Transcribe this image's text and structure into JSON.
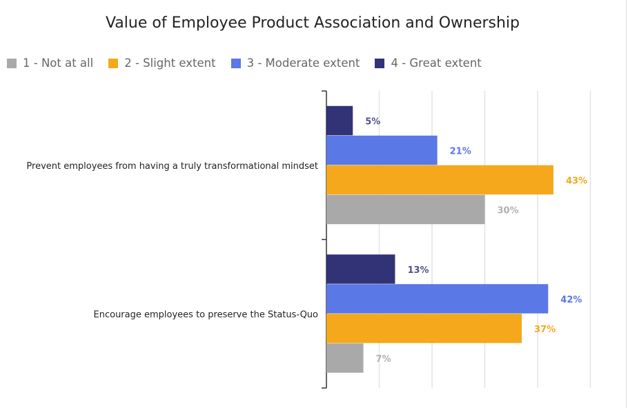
{
  "chart_data": {
    "type": "bar",
    "orientation": "horizontal",
    "title": "Value of Employee Product Association and Ownership",
    "categories": [
      "Prevent employees from having a truly transformational mindset",
      "Encourage employees to preserve the Status-Quo"
    ],
    "series": [
      {
        "name": "1 - Not at all",
        "color": "#a9a9a9",
        "values": [
          30,
          7
        ]
      },
      {
        "name": "2 - Slight extent",
        "color": "#f5a81c",
        "values": [
          43,
          37
        ]
      },
      {
        "name": "3 - Moderate extent",
        "color": "#5a78e6",
        "values": [
          21,
          42
        ]
      },
      {
        "name": "4 - Great extent",
        "color": "#323376",
        "values": [
          5,
          13
        ]
      }
    ],
    "value_format": "percent",
    "xlim": [
      0,
      50
    ],
    "grid": true,
    "legend": "top-left"
  }
}
